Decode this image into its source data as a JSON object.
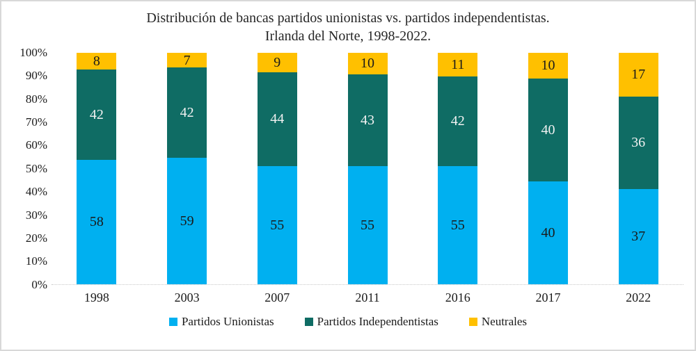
{
  "title": {
    "line1": "Distribución de bancas partidos unionistas vs. partidos independentistas.",
    "line2": "Irlanda del Norte, 1998-2022."
  },
  "chart_data": {
    "type": "bar",
    "stacked": true,
    "normalized": "percent",
    "title": "Distribución de bancas partidos unionistas vs. partidos independentistas. Irlanda del Norte, 1998-2022.",
    "categories": [
      "1998",
      "2003",
      "2007",
      "2011",
      "2016",
      "2017",
      "2022"
    ],
    "series": [
      {
        "name": "Partidos Unionistas",
        "color": "#00B0F0",
        "label_color": "#1a1a1a",
        "values": [
          58,
          59,
          55,
          55,
          55,
          40,
          37
        ]
      },
      {
        "name": "Partidos Independentistas",
        "color": "#0F6C64",
        "label_color": "#F2F2F2",
        "values": [
          42,
          42,
          44,
          43,
          42,
          40,
          36
        ]
      },
      {
        "name": "Neutrales",
        "color": "#FFC000",
        "label_color": "#1a1a1a",
        "values": [
          8,
          7,
          9,
          10,
          11,
          10,
          17
        ]
      }
    ],
    "y_axis": {
      "min": 0,
      "max": 100,
      "tick_step": 10,
      "tick_labels": [
        "0%",
        "10%",
        "20%",
        "30%",
        "40%",
        "50%",
        "60%",
        "70%",
        "80%",
        "90%",
        "100%"
      ]
    },
    "grid": false,
    "legend_position": "bottom",
    "legend_labels": [
      "Partidos Unionistas",
      "Partidos Independentistas",
      "Neutrales"
    ]
  },
  "colors": {
    "frame_border": "#d8d8d8",
    "baseline": "#c8c8c8",
    "text": "#1a1a1a"
  }
}
